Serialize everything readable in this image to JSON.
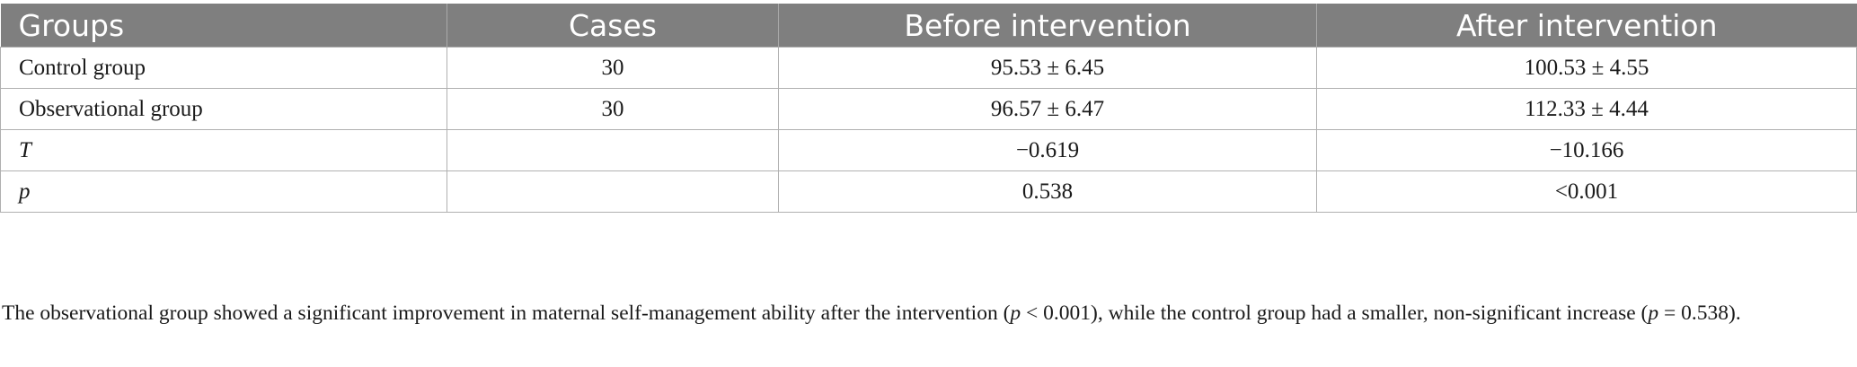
{
  "table": {
    "headers": [
      "Groups",
      "Cases",
      "Before intervention",
      "After intervention"
    ],
    "rows": [
      {
        "group": "Control group",
        "cases": "30",
        "before": "95.53 ± 6.45",
        "after": "100.53 ± 4.55"
      },
      {
        "group": "Observational group",
        "cases": "30",
        "before": "96.57 ± 6.47",
        "after": "112.33 ± 4.44"
      },
      {
        "group": "T",
        "cases": "",
        "before": "−0.619",
        "after": "−10.166"
      },
      {
        "group": "p",
        "cases": "",
        "before": "0.538",
        "after": "<0.001"
      }
    ]
  },
  "footnote": {
    "part1": "The observational group showed a significant improvement in maternal self-management ability after the intervention (",
    "p1": "p",
    "part2": " < 0.001), while the control group had a smaller, non-significant increase (",
    "p2": "p",
    "part3": " = 0.538)."
  }
}
